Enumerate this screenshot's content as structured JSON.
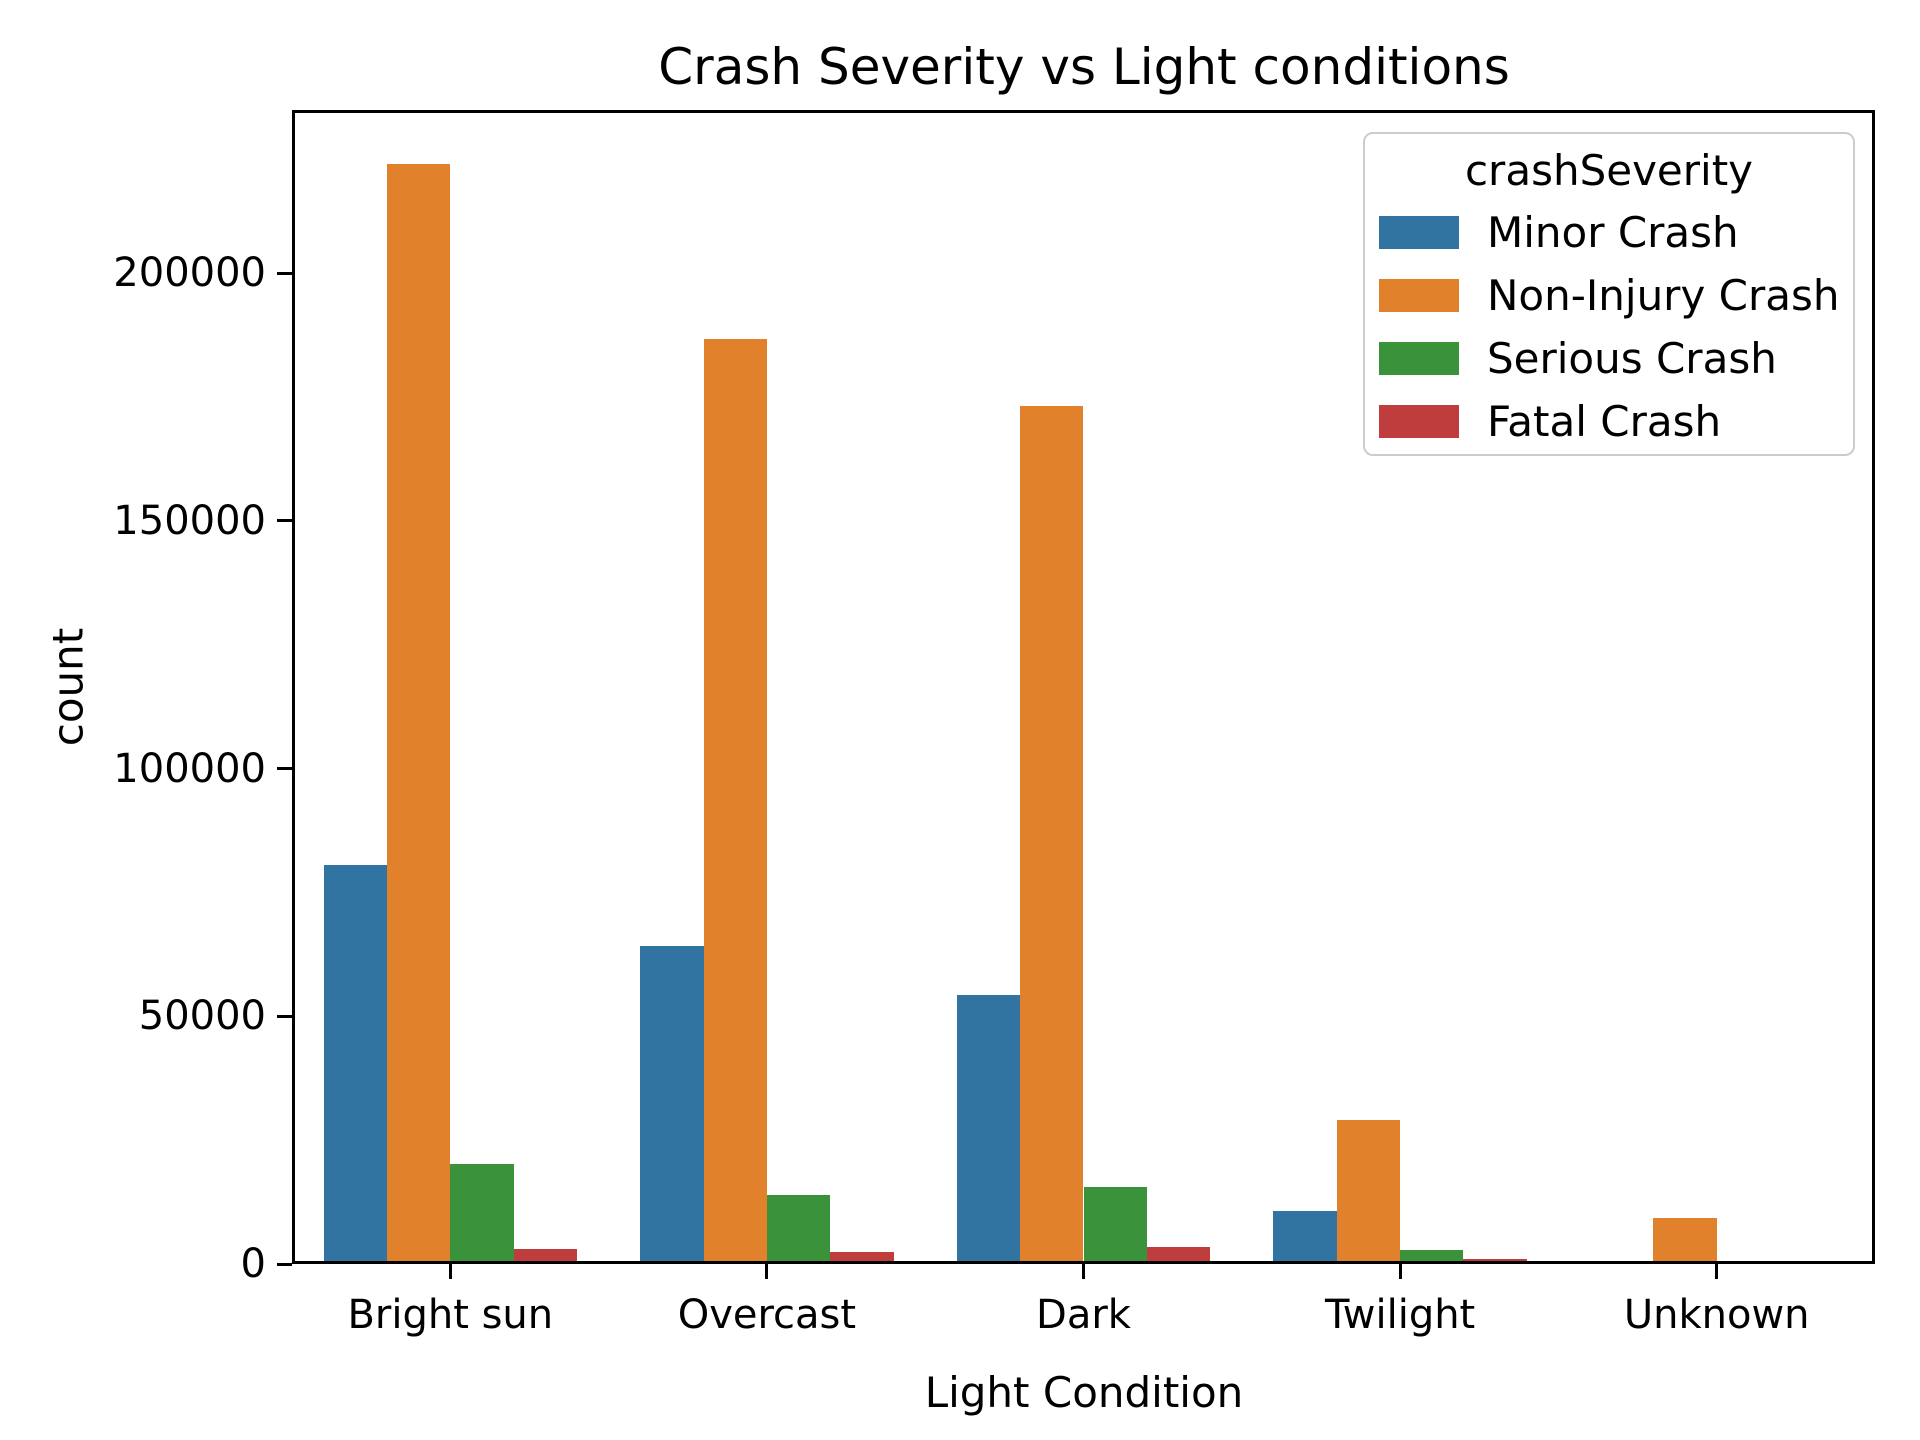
{
  "chart_data": {
    "type": "bar",
    "title": "Crash Severity vs Light conditions",
    "xlabel": "Light Condition",
    "ylabel": "count",
    "legend_title": "crashSeverity",
    "legend_position": "upper right",
    "grid": false,
    "categories": [
      "Bright sun",
      "Overcast",
      "Dark",
      "Twilight",
      "Unknown"
    ],
    "series": [
      {
        "name": "Minor Crash",
        "color": "#3274A1",
        "values": [
          80000,
          63500,
          53700,
          10000,
          0
        ]
      },
      {
        "name": "Non-Injury Crash",
        "color": "#E1812C",
        "values": [
          221500,
          186000,
          172500,
          28500,
          8700
        ]
      },
      {
        "name": "Serious Crash",
        "color": "#3A923A",
        "values": [
          19600,
          13300,
          15000,
          2200,
          0
        ]
      },
      {
        "name": "Fatal Crash",
        "color": "#C03D3E",
        "values": [
          2500,
          1900,
          2900,
          400,
          0
        ]
      }
    ],
    "y_ticks": [
      0,
      50000,
      100000,
      150000,
      200000
    ],
    "ylim": [
      0,
      232900
    ]
  }
}
